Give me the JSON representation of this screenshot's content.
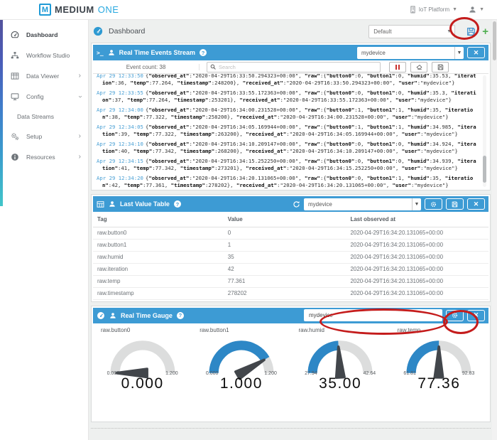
{
  "topbar": {
    "brand_m": "M",
    "brand_medium": "MEDIUM",
    "brand_one": "ONE",
    "platform_label": "IoT Platform"
  },
  "sidebar": {
    "items": [
      {
        "label": "Dashboard",
        "active": true
      },
      {
        "label": "Workflow Studio"
      },
      {
        "label": "Data Viewer",
        "chevron": "right"
      },
      {
        "label": "Config",
        "chevron": "down"
      },
      {
        "label": "Data Streams",
        "sub": true
      },
      {
        "label": "Setup",
        "chevron": "right"
      },
      {
        "label": "Resources",
        "chevron": "right"
      }
    ]
  },
  "page_header": {
    "title": "Dashboard",
    "dashboard_select": "Default"
  },
  "events_panel": {
    "title": "Real Time Events Stream",
    "device_select": "mydevice",
    "event_count_label": "Event count: 38",
    "search_placeholder": "Search",
    "entries": [
      {
        "time": "Apr 29 12:33:50",
        "json": "{\"observed_at\":\"2020-04-29T16:33:50.294323+00:00\", \"raw\":{\"button0\":0, \"button1\":0, \"humid\":35.53, \"iteration\":36, \"temp\":77.264, \"timestamp\":248200}, \"received_at\":\"2020-04-29T16:33:50.294323+00:00\", \"user\":\"mydevice\"}"
      },
      {
        "time": "Apr 29 12:33:55",
        "json": "{\"observed_at\":\"2020-04-29T16:33:55.172363+00:00\", \"raw\":{\"button0\":0, \"button1\":0, \"humid\":35.3, \"iteration\":37, \"temp\":77.264, \"timestamp\":253201}, \"received_at\":\"2020-04-29T16:33:55.172363+00:00\", \"user\":\"mydevice\"}"
      },
      {
        "time": "Apr 29 12:34:00",
        "json": "{\"observed_at\":\"2020-04-29T16:34:00.231528+00:00\", \"raw\":{\"button0\":1, \"button1\":1, \"humid\":35, \"iteration\":38, \"temp\":77.322, \"timestamp\":258200}, \"received_at\":\"2020-04-29T16:34:00.231528+00:00\", \"user\":\"mydevice\"}"
      },
      {
        "time": "Apr 29 12:34:05",
        "json": "{\"observed_at\":\"2020-04-29T16:34:05.169944+00:00\", \"raw\":{\"button0\":1, \"button1\":1, \"humid\":34.985, \"iteration\":39, \"temp\":77.322, \"timestamp\":263200}, \"received_at\":\"2020-04-29T16:34:05.169944+00:00\", \"user\":\"mydevice\"}"
      },
      {
        "time": "Apr 29 12:34:10",
        "json": "{\"observed_at\":\"2020-04-29T16:34:10.209147+00:00\", \"raw\":{\"button0\":0, \"button1\":0, \"humid\":34.924, \"iteration\":40, \"temp\":77.342, \"timestamp\":268200}, \"received_at\":\"2020-04-29T16:34:10.209147+00:00\", \"user\":\"mydevice\"}"
      },
      {
        "time": "Apr 29 12:34:15",
        "json": "{\"observed_at\":\"2020-04-29T16:34:15.252250+00:00\", \"raw\":{\"button0\":0, \"button1\":0, \"humid\":34.939, \"iteration\":41, \"temp\":77.342, \"timestamp\":273201}, \"received_at\":\"2020-04-29T16:34:15.252250+00:00\", \"user\":\"mydevice\"}"
      },
      {
        "time": "Apr 29 12:34:20",
        "json": "{\"observed_at\":\"2020-04-29T16:34:20.131065+00:00\", \"raw\":{\"button0\":0, \"button1\":1, \"humid\":35, \"iteration\":42, \"temp\":77.361, \"timestamp\":278202}, \"received_at\":\"2020-04-29T16:34:20.131065+00:00\", \"user\":\"mydevice\"}"
      }
    ]
  },
  "table_panel": {
    "title": "Last Value Table",
    "device_select": "mydevice",
    "columns": [
      "Tag",
      "Value",
      "Last observed at"
    ],
    "rows": [
      [
        "raw.button0",
        "0",
        "2020-04-29T16:34:20.131065+00:00"
      ],
      [
        "raw.button1",
        "1",
        "2020-04-29T16:34:20.131065+00:00"
      ],
      [
        "raw.humid",
        "35",
        "2020-04-29T16:34:20.131065+00:00"
      ],
      [
        "raw.iteration",
        "42",
        "2020-04-29T16:34:20.131065+00:00"
      ],
      [
        "raw.temp",
        "77.361",
        "2020-04-29T16:34:20.131065+00:00"
      ],
      [
        "raw.timestamp",
        "278202",
        "2020-04-29T16:34:20.131065+00:00"
      ]
    ]
  },
  "gauge_panel": {
    "title": "Real Time Gauge",
    "device_input": "mydevice",
    "gauges": [
      {
        "label": "raw.button0",
        "min": 0,
        "max": 1.2,
        "value": 0,
        "min_label": "0.000",
        "max_label": "1.200",
        "value_label": "0.000"
      },
      {
        "label": "raw.button1",
        "min": 0,
        "max": 1.2,
        "value": 1.0,
        "min_label": "0.000",
        "max_label": "1.200",
        "value_label": "1.000"
      },
      {
        "label": "raw.humid",
        "min": 27.94,
        "max": 42.64,
        "value": 35.0,
        "min_label": "27.94",
        "max_label": "42.64",
        "value_label": "35.00"
      },
      {
        "label": "raw.temp",
        "min": 61.81,
        "max": 92.83,
        "value": 77.36,
        "min_label": "61.81",
        "max_label": "92.83",
        "value_label": "77.36"
      }
    ]
  },
  "colors": {
    "panel_header_blue": "#3d9bd4",
    "gauge_fill_blue": "#2d87c6",
    "gauge_track_grey": "#dcdddd",
    "needle_dark": "#42464b",
    "timestamp_blue": "#4aa0d5",
    "annotation_red": "#c41c1c",
    "plus_green": "#4faf50",
    "pause_red": "#c9302c"
  }
}
